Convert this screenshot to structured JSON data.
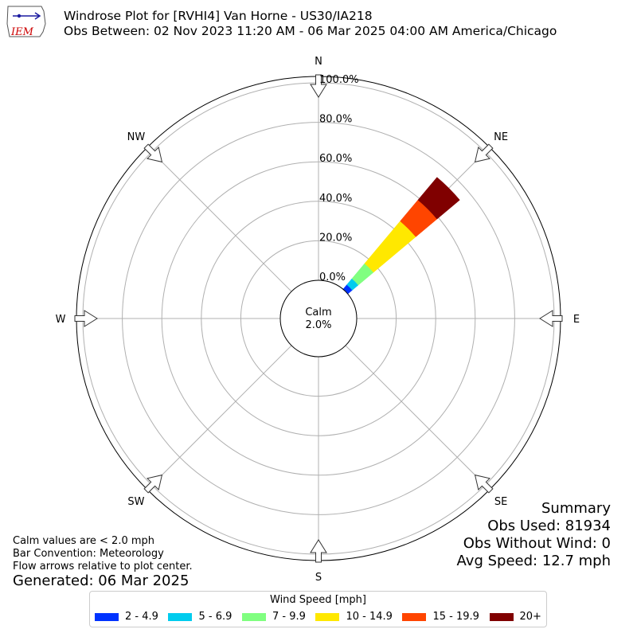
{
  "header": {
    "title_line1": "Windrose Plot for [RVHI4] Van Horne - US30/IA218",
    "title_line2": "Obs Between: 02 Nov 2023 11:20 AM - 06 Mar 2025 04:00 AM America/Chicago",
    "logo_text": "IEM"
  },
  "summary": {
    "heading": "Summary",
    "obs_used": "Obs Used: 81934",
    "obs_without_wind": "Obs Without Wind: 0",
    "avg_speed": "Avg Speed: 12.7 mph"
  },
  "notes": {
    "calm": "Calm values are < 2.0 mph",
    "bar_convention": "Bar Convention: Meteorology",
    "flow_arrows": "Flow arrows relative to plot center.",
    "generated": "Generated: 06 Mar 2025"
  },
  "calm": {
    "label": "Calm",
    "value": "2.0%"
  },
  "legend": {
    "title": "Wind Speed [mph]"
  },
  "chart_data": {
    "type": "windrose",
    "directions": [
      {
        "label": "N",
        "angle": 0
      },
      {
        "label": "NE",
        "angle": 45
      },
      {
        "label": "E",
        "angle": 90
      },
      {
        "label": "SE",
        "angle": 135
      },
      {
        "label": "S",
        "angle": 180
      },
      {
        "label": "SW",
        "angle": 225
      },
      {
        "label": "W",
        "angle": 270
      },
      {
        "label": "NW",
        "angle": 315
      }
    ],
    "radial_ticks": [
      0,
      20,
      40,
      60,
      80,
      100
    ],
    "radial_tick_labels": [
      "0.0%",
      "20.0%",
      "40.0%",
      "60.0%",
      "80.0%",
      "100.0%"
    ],
    "rlim": [
      0,
      100
    ],
    "grid": true,
    "legend_position": "bottom",
    "bins": [
      {
        "label": "2 - 4.9",
        "color": "#0033ff"
      },
      {
        "label": "5 - 6.9",
        "color": "#00ccee"
      },
      {
        "label": "7 - 9.9",
        "color": "#80ff80"
      },
      {
        "label": "10 - 14.9",
        "color": "#ffe800"
      },
      {
        "label": "15 - 19.9",
        "color": "#ff4500"
      },
      {
        "label": "20+",
        "color": "#800000"
      }
    ],
    "sectors": [
      {
        "direction": 45,
        "width_deg": 10,
        "cumulative": [
          3,
          7,
          17,
          45,
          59,
          74
        ]
      }
    ]
  }
}
